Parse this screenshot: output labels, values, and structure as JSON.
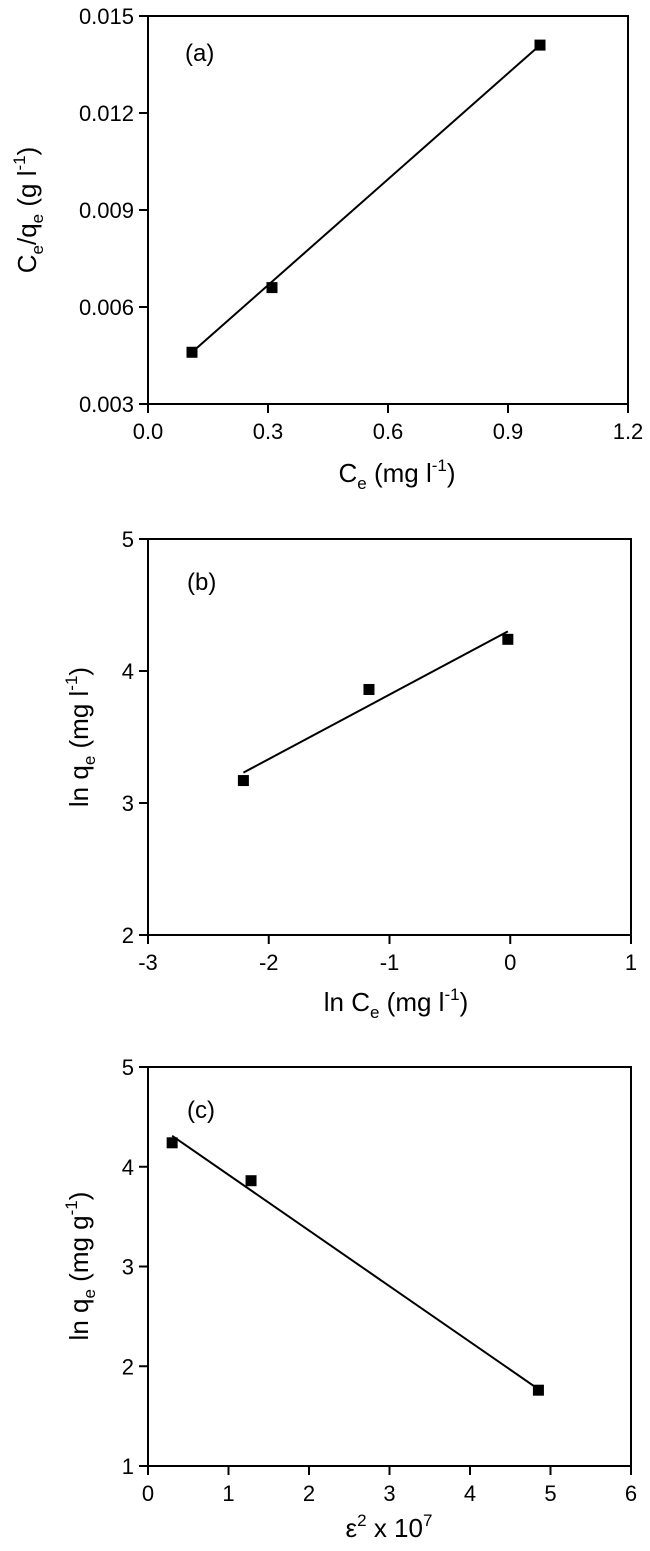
{
  "chart_data": [
    {
      "type": "scatter",
      "panel_label": "(a)",
      "xlabel": "Ce (mg l-1)",
      "ylabel": "Ce/qe (g l-1)",
      "xlim": [
        0.0,
        1.2
      ],
      "ylim": [
        0.003,
        0.015
      ],
      "x_ticks": [
        "0.0",
        "0.3",
        "0.6",
        "0.9",
        "1.2"
      ],
      "y_ticks": [
        "0.003",
        "0.006",
        "0.009",
        "0.012",
        "0.015"
      ],
      "points": [
        {
          "x": 0.11,
          "y": 0.0046
        },
        {
          "x": 0.31,
          "y": 0.0066
        },
        {
          "x": 0.98,
          "y": 0.0141
        }
      ],
      "fit_line": [
        {
          "x": 0.11,
          "y": 0.0046
        },
        {
          "x": 0.98,
          "y": 0.0141
        }
      ],
      "grid": false,
      "legend": "none"
    },
    {
      "type": "scatter",
      "panel_label": "(b)",
      "xlabel": "ln Ce (mg l-1)",
      "ylabel": "ln qe (mg l-1)",
      "xlim": [
        -3,
        1
      ],
      "ylim": [
        2,
        5
      ],
      "x_ticks": [
        "-3",
        "-2",
        "-1",
        "0",
        "1"
      ],
      "y_ticks": [
        "2",
        "3",
        "4",
        "5"
      ],
      "points": [
        {
          "x": -2.21,
          "y": 3.17
        },
        {
          "x": -1.17,
          "y": 3.86
        },
        {
          "x": -0.02,
          "y": 4.24
        }
      ],
      "fit_line": [
        {
          "x": -2.21,
          "y": 3.23
        },
        {
          "x": -0.02,
          "y": 4.3
        }
      ],
      "grid": false,
      "legend": "none"
    },
    {
      "type": "scatter",
      "panel_label": "(c)",
      "xlabel": "ε2 x 107",
      "ylabel": "ln qe (mg g-1)",
      "xlim": [
        0,
        6
      ],
      "ylim": [
        1,
        5
      ],
      "x_ticks": [
        "0",
        "1",
        "2",
        "3",
        "4",
        "5",
        "6"
      ],
      "y_ticks": [
        "1",
        "2",
        "3",
        "4",
        "5"
      ],
      "points": [
        {
          "x": 0.3,
          "y": 4.24
        },
        {
          "x": 1.28,
          "y": 3.86
        },
        {
          "x": 4.85,
          "y": 1.76
        }
      ],
      "fit_line": [
        {
          "x": 0.3,
          "y": 4.31
        },
        {
          "x": 4.85,
          "y": 1.77
        }
      ],
      "grid": false,
      "legend": "none"
    }
  ],
  "labels": {
    "a": {
      "panel": "(a)",
      "x_main": "C",
      "x_sub": "e",
      "x_unit": " (mg l",
      "x_sup": "-1",
      "x_close": ")",
      "y_c": "C",
      "y_sub1": "e",
      "y_slash": "/q",
      "y_sub2": "e",
      "y_unit": " (g l",
      "y_sup": "-1",
      "y_close": ")"
    },
    "b": {
      "panel": "(b)",
      "x_main": "ln C",
      "x_sub": "e",
      "x_unit": " (mg l",
      "x_sup": "-1",
      "x_close": ")",
      "y_main": "ln q",
      "y_sub": "e",
      "y_unit": " (mg l",
      "y_sup": "-1",
      "y_close": ")"
    },
    "c": {
      "panel": "(c)",
      "x_eps": "ε",
      "x_sup1": "2",
      "x_mid": " x 10",
      "x_sup2": "7",
      "y_main": "ln q",
      "y_sub": "e",
      "y_unit": " (mg g",
      "y_sup": "-1",
      "y_close": ")"
    }
  },
  "colors": {
    "axis": "#000000",
    "marker": "#000000",
    "line": "#000000"
  }
}
